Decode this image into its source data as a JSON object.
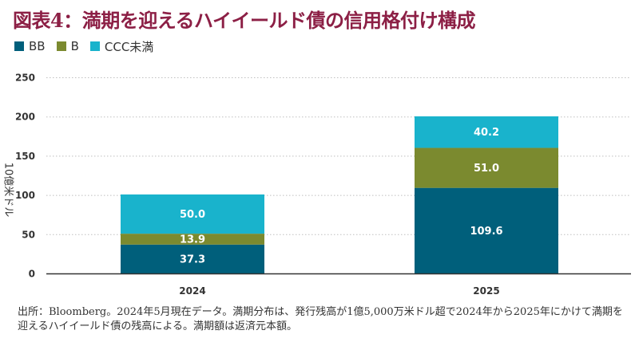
{
  "title": "図表4：満期を迎えるハイイールド債の信用格付け構成",
  "note": "出所：Bloomberg。2024年5月現在データ。満期分布は、発行残高が1億5,000万米ドル超で2024年から2025年にかけて満期を迎えるハイイールド債の残高による。満期額は返済元本額。",
  "colors": {
    "BB": "#005f7b",
    "B": "#7b8a2f",
    "CCC未満": "#19b3cc",
    "axis": "#333333",
    "grid": "#bfbfbf",
    "title": "#8c1f45"
  },
  "chart_data": {
    "type": "bar",
    "stacked": true,
    "categories": [
      "2024",
      "2025"
    ],
    "series": [
      {
        "name": "BB",
        "values": [
          37.3,
          109.6
        ],
        "labels": [
          "37.3",
          "109.6"
        ]
      },
      {
        "name": "B",
        "values": [
          13.9,
          51.0
        ],
        "labels": [
          "13.9",
          "51.0"
        ]
      },
      {
        "name": "CCC未満",
        "values": [
          50.0,
          40.2
        ],
        "labels": [
          "50.0",
          "40.2"
        ]
      }
    ],
    "ylabel": "10億米ドル",
    "ylim": [
      0,
      250
    ],
    "yticks": [
      "0",
      "50",
      "100",
      "150",
      "200",
      "250"
    ],
    "grid": true,
    "legend": "top-left"
  }
}
